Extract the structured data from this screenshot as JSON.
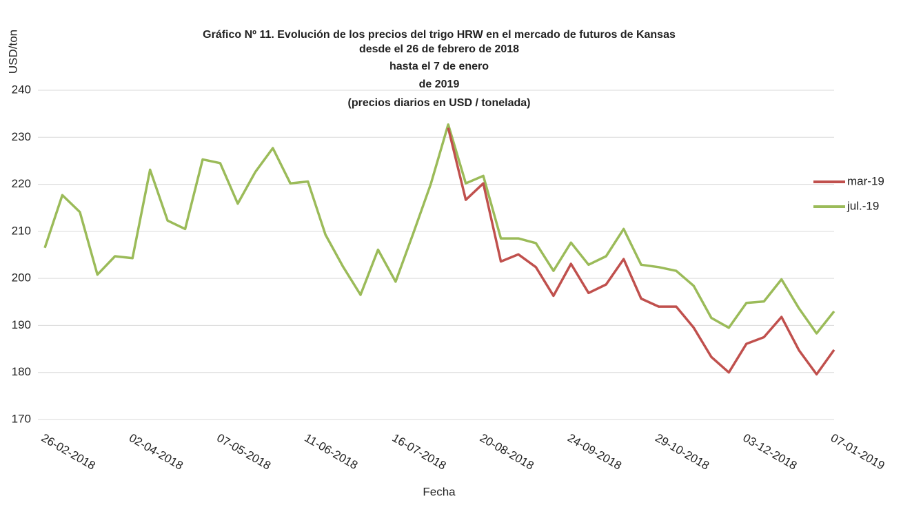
{
  "chart_data": {
    "type": "line",
    "title": [
      "Gráfico Nº 11. Evolución de los precios del trigo HRW en el mercado de futuros de Kansas",
      "desde el 26 de febrero de 2018",
      "hasta el 7 de enero",
      "de 2019",
      "(precios diarios en USD / tonelada)"
    ],
    "y_label": "USD/ton",
    "x_label": "Fecha",
    "categories": [
      "26-02-2018",
      null,
      null,
      null,
      null,
      "02-04-2018",
      null,
      null,
      null,
      null,
      "07-05-2018",
      null,
      null,
      null,
      null,
      "11-06-2018",
      null,
      null,
      null,
      null,
      "16-07-2018",
      null,
      null,
      null,
      null,
      "20-08-2018",
      null,
      null,
      null,
      null,
      "24-09-2018",
      null,
      null,
      null,
      null,
      "29-10-2018",
      null,
      null,
      null,
      null,
      "03-12-2018",
      null,
      null,
      null,
      null,
      "07-01-2019"
    ],
    "series": [
      {
        "name": "mar-19",
        "color": "#c0504d",
        "values": [
          null,
          null,
          null,
          null,
          null,
          null,
          null,
          null,
          null,
          null,
          null,
          null,
          null,
          null,
          null,
          null,
          null,
          null,
          null,
          null,
          null,
          null,
          null,
          232,
          216.7,
          220.2,
          203.6,
          205.1,
          202.4,
          196.3,
          203.1,
          196.9,
          198.7,
          204.1,
          195.7,
          194,
          194,
          189.5,
          183.3,
          180,
          186.1,
          187.5,
          191.8,
          184.7,
          179.6,
          184.8
        ]
      },
      {
        "name": "jul.-19",
        "color": "#9bbb59",
        "values": [
          206.5,
          217.7,
          214.1,
          200.8,
          204.7,
          204.3,
          223.1,
          212.3,
          210.5,
          225.3,
          224.5,
          215.9,
          222.6,
          227.7,
          220.2,
          220.6,
          209.3,
          202.5,
          196.5,
          206.1,
          199.3,
          209.5,
          220,
          232.7,
          220.2,
          221.8,
          208.5,
          208.5,
          207.5,
          201.6,
          207.6,
          202.9,
          204.7,
          210.5,
          202.9,
          202.4,
          201.6,
          198.4,
          191.6,
          189.5,
          194.8,
          195.1,
          199.8,
          193.6,
          188.3,
          193
        ]
      }
    ],
    "ylim": [
      170,
      240
    ],
    "yticks": [
      170,
      180,
      190,
      200,
      210,
      220,
      230,
      240
    ],
    "grid": true,
    "legend": "right"
  }
}
